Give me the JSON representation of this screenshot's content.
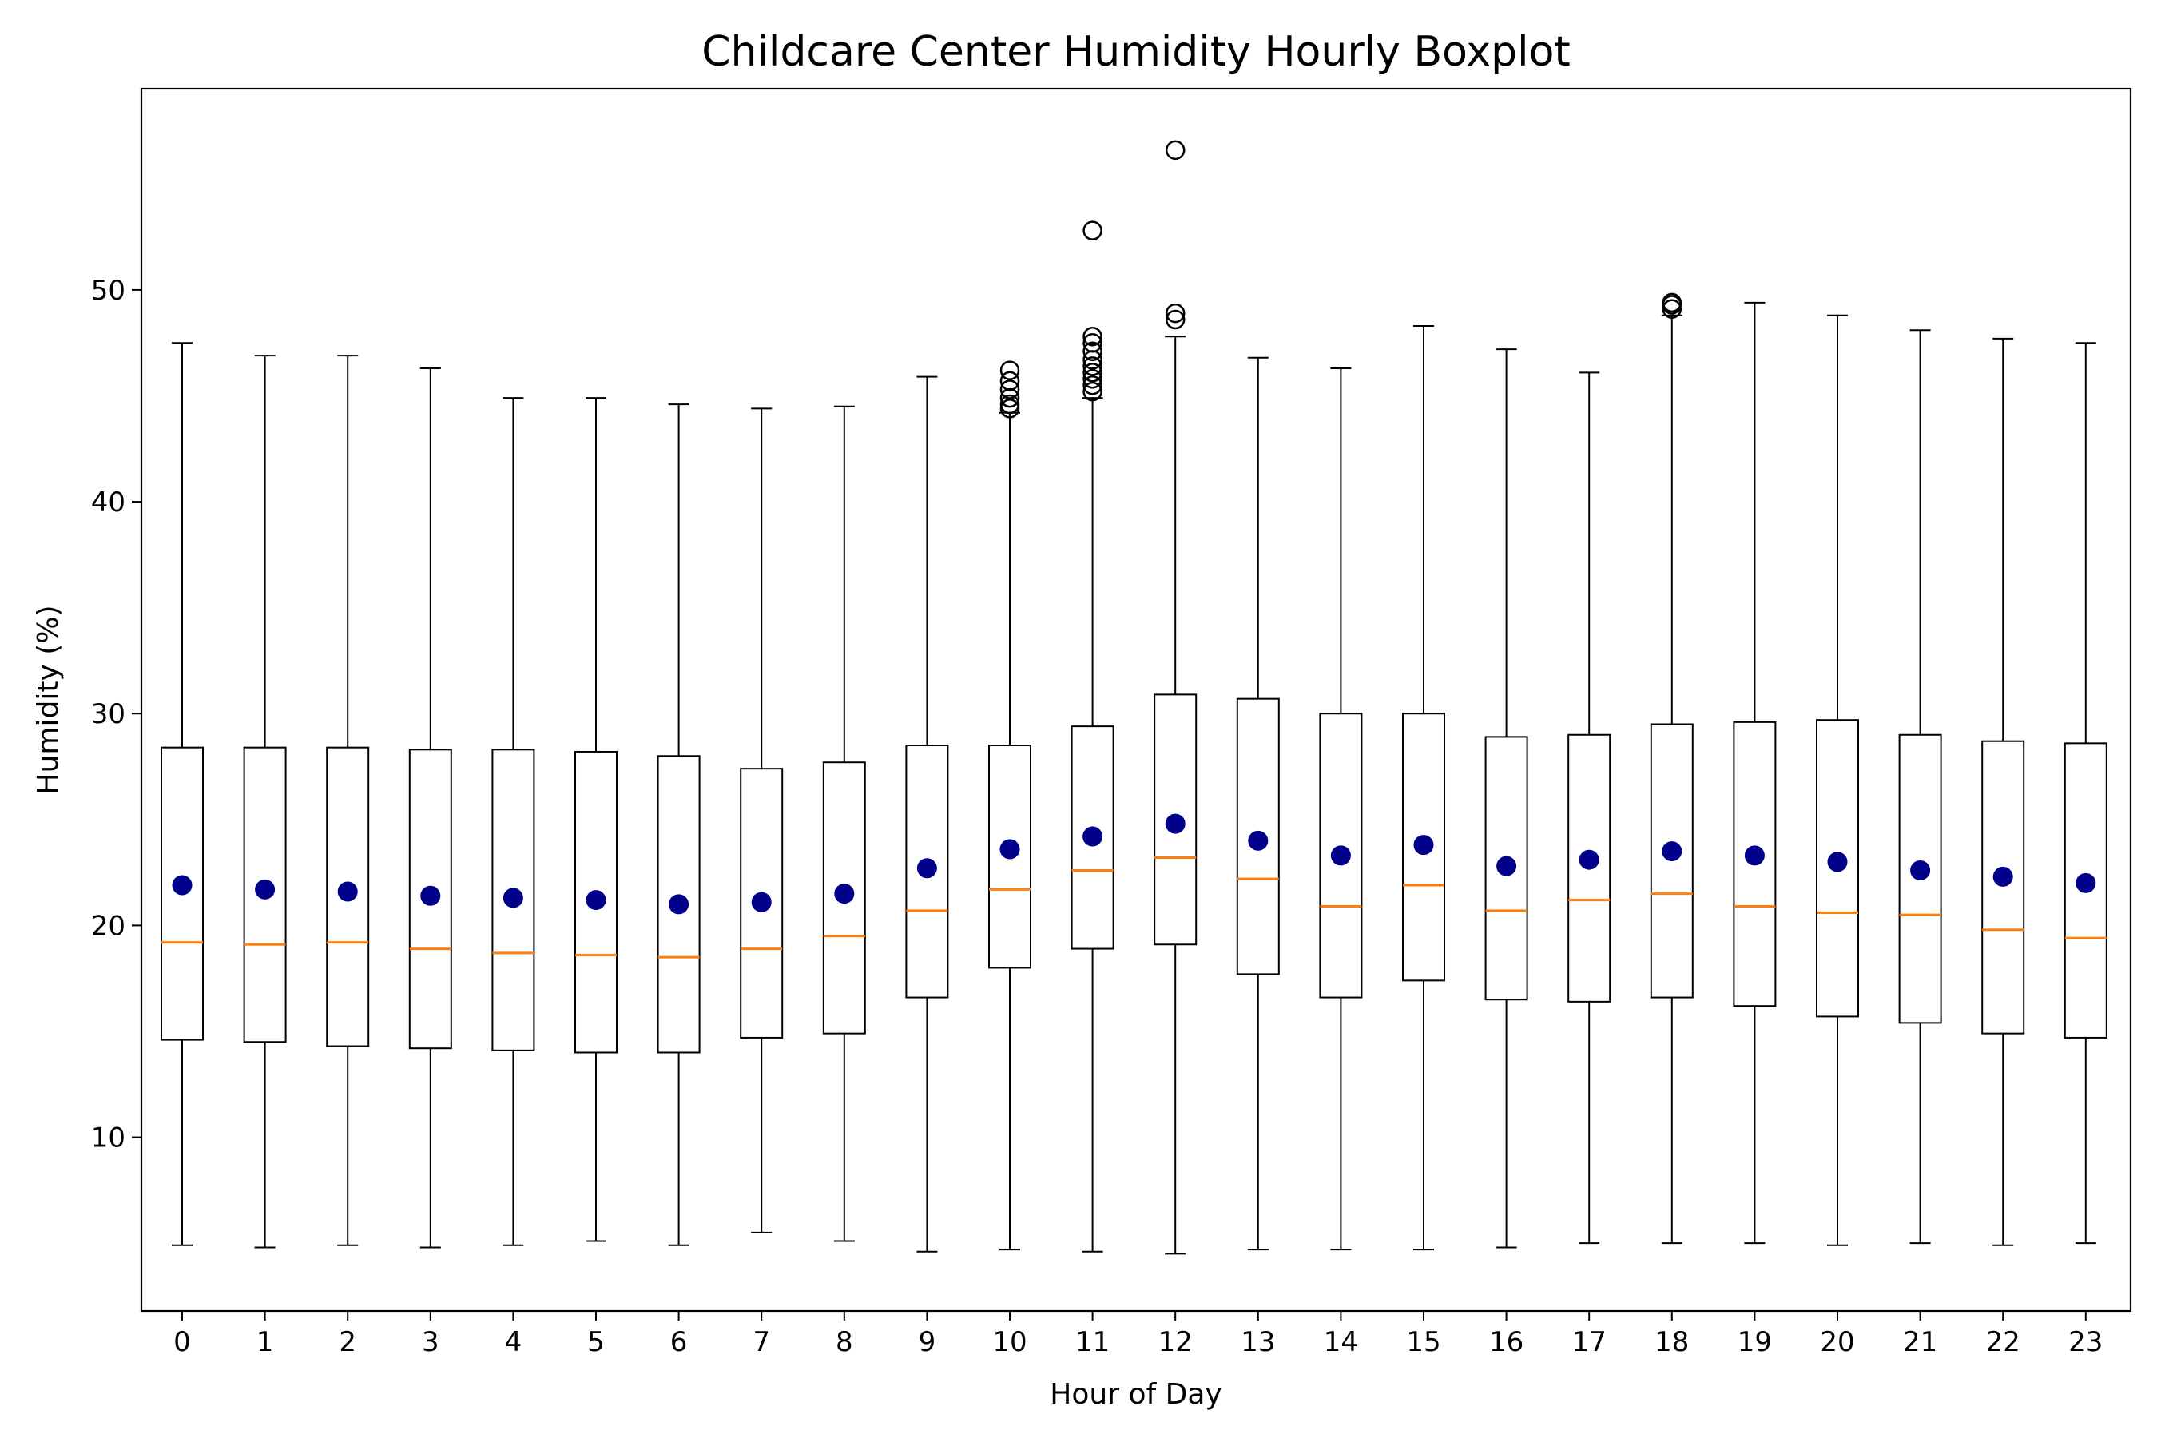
{
  "chart_data": {
    "type": "boxplot",
    "title": "Childcare Center Humidity Hourly Boxplot",
    "xlabel": "Hour of Day",
    "ylabel": "Humidity (%)",
    "ylim": [
      1.8,
      59.5
    ],
    "yticks": [
      10,
      20,
      30,
      40,
      50
    ],
    "grid": false,
    "colors": {
      "box": "#000000",
      "median": "#ff7f0e",
      "mean": "#00008b",
      "outlier": "#000000"
    },
    "categories": [
      "0",
      "1",
      "2",
      "3",
      "4",
      "5",
      "6",
      "7",
      "8",
      "9",
      "10",
      "11",
      "12",
      "13",
      "14",
      "15",
      "16",
      "17",
      "18",
      "19",
      "20",
      "21",
      "22",
      "23"
    ],
    "series": [
      {
        "name": "0",
        "whisker_low": 4.9,
        "q1": 14.6,
        "median": 19.2,
        "q3": 28.4,
        "whisker_high": 47.5,
        "mean": 21.9,
        "outliers": []
      },
      {
        "name": "1",
        "whisker_low": 4.8,
        "q1": 14.5,
        "median": 19.1,
        "q3": 28.4,
        "whisker_high": 46.9,
        "mean": 21.7,
        "outliers": []
      },
      {
        "name": "2",
        "whisker_low": 4.9,
        "q1": 14.3,
        "median": 19.2,
        "q3": 28.4,
        "whisker_high": 46.9,
        "mean": 21.6,
        "outliers": []
      },
      {
        "name": "3",
        "whisker_low": 4.8,
        "q1": 14.2,
        "median": 18.9,
        "q3": 28.3,
        "whisker_high": 46.3,
        "mean": 21.4,
        "outliers": []
      },
      {
        "name": "4",
        "whisker_low": 4.9,
        "q1": 14.1,
        "median": 18.7,
        "q3": 28.3,
        "whisker_high": 44.9,
        "mean": 21.3,
        "outliers": []
      },
      {
        "name": "5",
        "whisker_low": 5.1,
        "q1": 14.0,
        "median": 18.6,
        "q3": 28.2,
        "whisker_high": 44.9,
        "mean": 21.2,
        "outliers": []
      },
      {
        "name": "6",
        "whisker_low": 4.9,
        "q1": 14.0,
        "median": 18.5,
        "q3": 28.0,
        "whisker_high": 44.6,
        "mean": 21.0,
        "outliers": []
      },
      {
        "name": "7",
        "whisker_low": 5.5,
        "q1": 14.7,
        "median": 18.9,
        "q3": 27.4,
        "whisker_high": 44.4,
        "mean": 21.1,
        "outliers": []
      },
      {
        "name": "8",
        "whisker_low": 5.1,
        "q1": 14.9,
        "median": 19.5,
        "q3": 27.7,
        "whisker_high": 44.5,
        "mean": 21.5,
        "outliers": []
      },
      {
        "name": "9",
        "whisker_low": 4.6,
        "q1": 16.6,
        "median": 20.7,
        "q3": 28.5,
        "whisker_high": 45.9,
        "mean": 22.7,
        "outliers": []
      },
      {
        "name": "10",
        "whisker_low": 4.7,
        "q1": 18.0,
        "median": 21.7,
        "q3": 28.5,
        "whisker_high": 44.2,
        "mean": 23.6,
        "outliers": [
          44.4,
          44.6,
          44.9,
          45.3,
          45.7,
          46.2
        ]
      },
      {
        "name": "11",
        "whisker_low": 4.6,
        "q1": 18.9,
        "median": 22.6,
        "q3": 29.4,
        "whisker_high": 44.9,
        "mean": 24.2,
        "outliers": [
          45.2,
          45.5,
          45.8,
          46.1,
          46.4,
          46.7,
          47.1,
          47.5,
          47.8,
          52.8
        ]
      },
      {
        "name": "12",
        "whisker_low": 4.5,
        "q1": 19.1,
        "median": 23.2,
        "q3": 30.9,
        "whisker_high": 47.8,
        "mean": 24.8,
        "outliers": [
          48.6,
          48.9,
          56.6
        ]
      },
      {
        "name": "13",
        "whisker_low": 4.7,
        "q1": 17.7,
        "median": 22.2,
        "q3": 30.7,
        "whisker_high": 46.8,
        "mean": 24.0,
        "outliers": []
      },
      {
        "name": "14",
        "whisker_low": 4.7,
        "q1": 16.6,
        "median": 20.9,
        "q3": 30.0,
        "whisker_high": 46.3,
        "mean": 23.3,
        "outliers": []
      },
      {
        "name": "15",
        "whisker_low": 4.7,
        "q1": 17.4,
        "median": 21.9,
        "q3": 30.0,
        "whisker_high": 48.3,
        "mean": 23.8,
        "outliers": []
      },
      {
        "name": "16",
        "whisker_low": 4.8,
        "q1": 16.5,
        "median": 20.7,
        "q3": 28.9,
        "whisker_high": 47.2,
        "mean": 22.8,
        "outliers": []
      },
      {
        "name": "17",
        "whisker_low": 5.0,
        "q1": 16.4,
        "median": 21.2,
        "q3": 29.0,
        "whisker_high": 46.1,
        "mean": 23.1,
        "outliers": []
      },
      {
        "name": "18",
        "whisker_low": 5.0,
        "q1": 16.6,
        "median": 21.5,
        "q3": 29.5,
        "whisker_high": 48.8,
        "mean": 23.5,
        "outliers": [
          49.1,
          49.3,
          49.4
        ]
      },
      {
        "name": "19",
        "whisker_low": 5.0,
        "q1": 16.2,
        "median": 20.9,
        "q3": 29.6,
        "whisker_high": 49.4,
        "mean": 23.3,
        "outliers": []
      },
      {
        "name": "20",
        "whisker_low": 4.9,
        "q1": 15.7,
        "median": 20.6,
        "q3": 29.7,
        "whisker_high": 48.8,
        "mean": 23.0,
        "outliers": []
      },
      {
        "name": "21",
        "whisker_low": 5.0,
        "q1": 15.4,
        "median": 20.5,
        "q3": 29.0,
        "whisker_high": 48.1,
        "mean": 22.6,
        "outliers": []
      },
      {
        "name": "22",
        "whisker_low": 4.9,
        "q1": 14.9,
        "median": 19.8,
        "q3": 28.7,
        "whisker_high": 47.7,
        "mean": 22.3,
        "outliers": []
      },
      {
        "name": "23",
        "whisker_low": 5.0,
        "q1": 14.7,
        "median": 19.4,
        "q3": 28.6,
        "whisker_high": 47.5,
        "mean": 22.0,
        "outliers": []
      }
    ]
  }
}
